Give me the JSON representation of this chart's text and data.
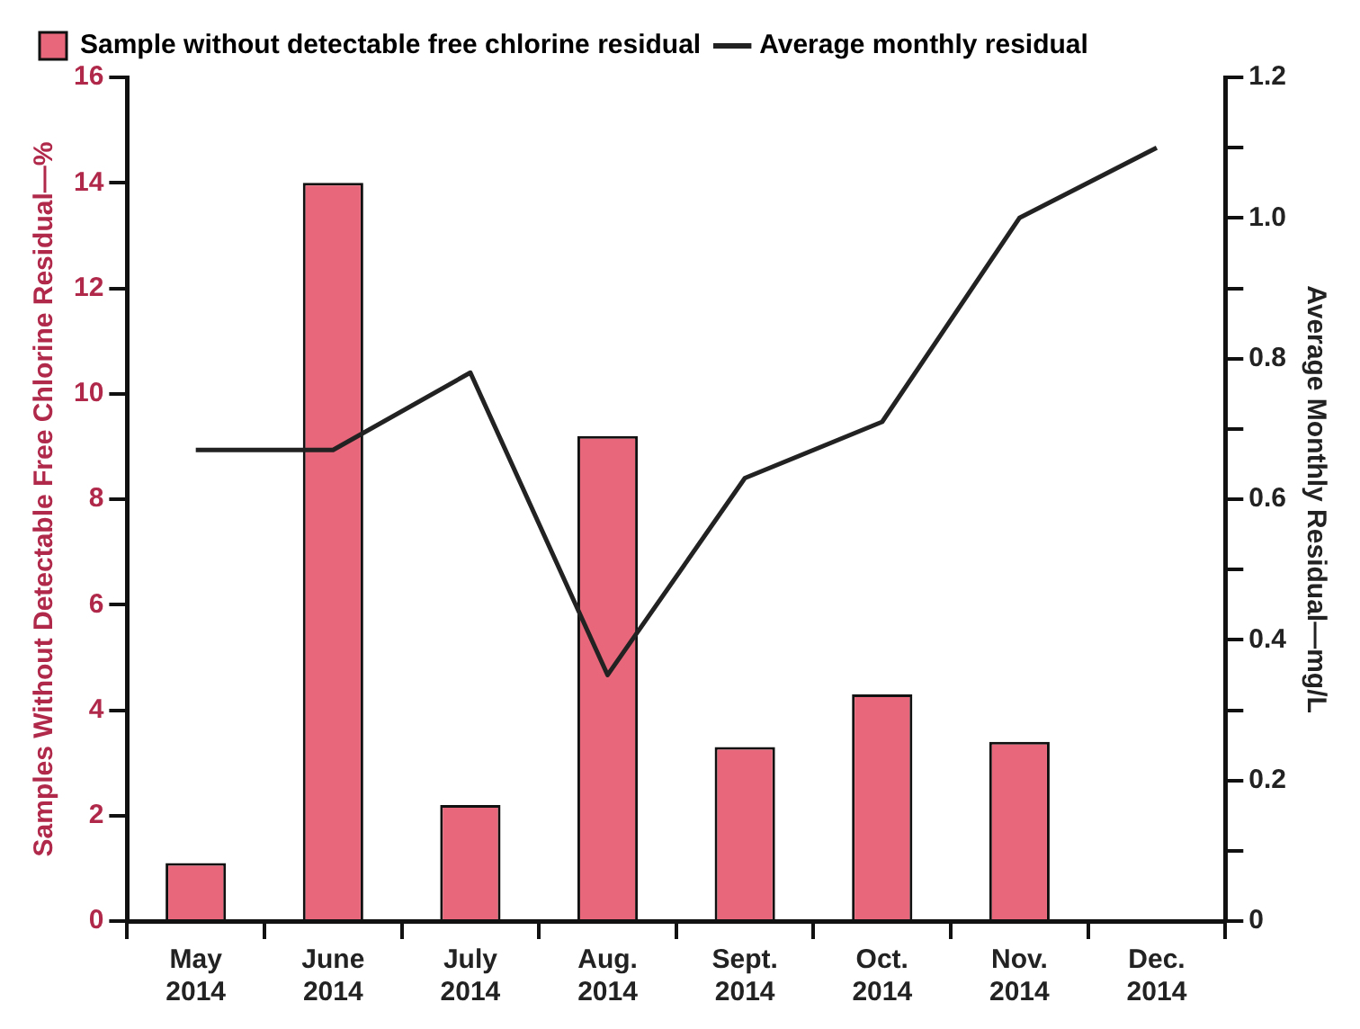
{
  "chart_data": {
    "type": "bar",
    "categories": [
      "May\n2014",
      "June\n2014",
      "July\n2014",
      "Aug.\n2014",
      "Sept.\n2014",
      "Oct.\n2014",
      "Nov.\n2014",
      "Dec.\n2014"
    ],
    "series": [
      {
        "name": "Sample without detectable free chlorine residual",
        "color": "#e8677a",
        "values": [
          1.1,
          14.0,
          2.2,
          9.2,
          3.3,
          4.3,
          3.4,
          null
        ]
      },
      {
        "name": "Average monthly residual",
        "type": "line",
        "axis": "y2",
        "color": "#222222",
        "values": [
          0.67,
          0.67,
          0.78,
          0.35,
          0.63,
          0.71,
          1.0,
          1.1
        ]
      }
    ],
    "ylabel": "Samples Without Detectable Free Chlorine Residual—%",
    "y2label": "Average Monthly Residual—mg/L",
    "ylim": [
      0,
      16
    ],
    "yticks": [
      0,
      2,
      4,
      6,
      8,
      10,
      12,
      14,
      16
    ],
    "y2lim": [
      0,
      1.2
    ],
    "y2ticks": [
      0,
      {
        "value": 0.1,
        "label": null
      },
      0.2,
      {
        "value": 0.3,
        "label": null
      },
      0.4,
      {
        "value": 0.5,
        "label": null
      },
      0.6,
      {
        "value": 0.7,
        "label": null
      },
      0.8,
      {
        "value": 0.9,
        "label": null
      },
      {
        "value": 1.0,
        "label": "1.0"
      },
      {
        "value": 1.1,
        "label": null
      },
      1.2
    ],
    "grid": false,
    "legend": "top left",
    "marker": "none",
    "line_style": "solid"
  }
}
